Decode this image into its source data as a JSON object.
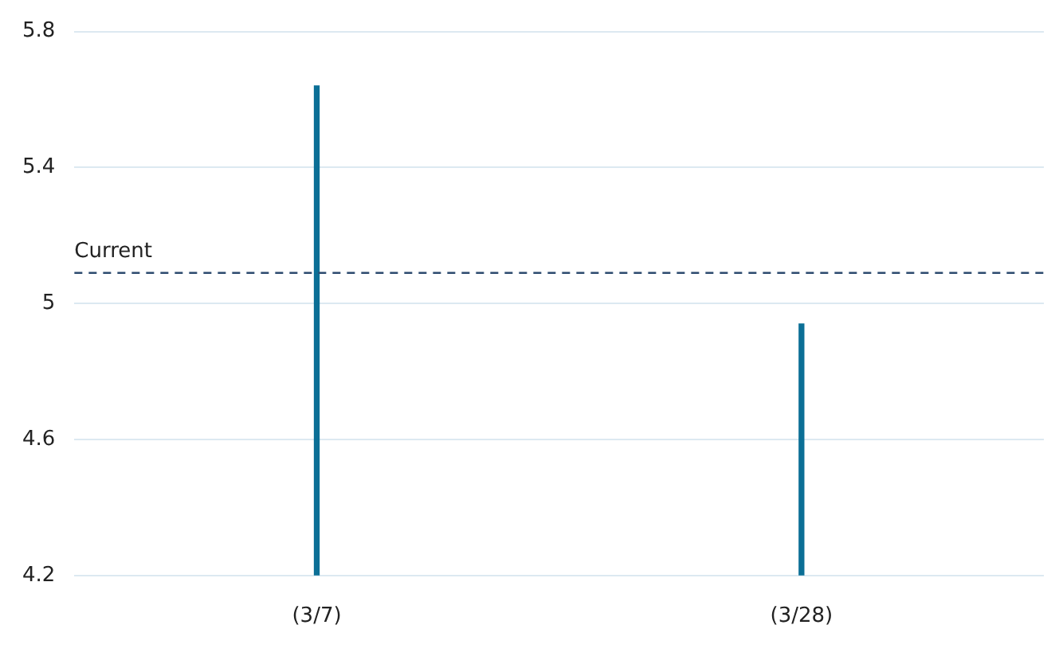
{
  "chart_data": {
    "type": "bar",
    "categories": [
      "(3/7)",
      "(3/28)"
    ],
    "values": [
      5.64,
      4.94
    ],
    "color": "#0b6f96",
    "ylim": [
      4.2,
      5.8
    ],
    "yticks": [
      4.2,
      4.6,
      5,
      5.4,
      5.8
    ],
    "grid": "y",
    "ref_lines": [
      {
        "axis": "y",
        "value": 5.09,
        "label": "Current",
        "color": "#2c4a6e",
        "line_style": "dashed"
      }
    ]
  }
}
